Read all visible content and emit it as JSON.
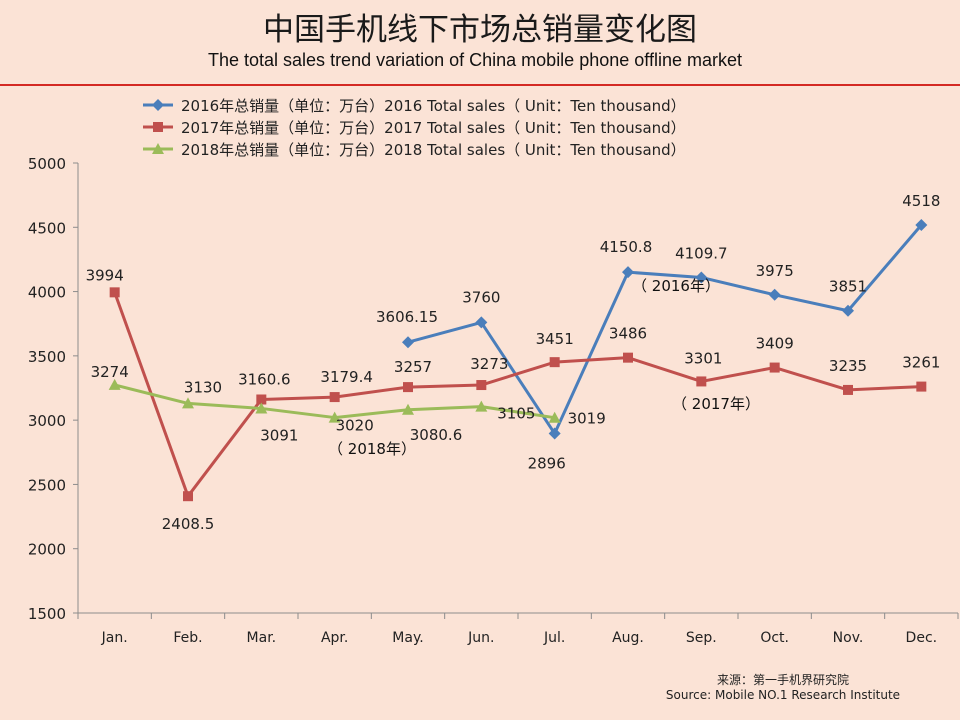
{
  "title_cn": "中国手机线下市场总销量变化图",
  "title_en": "The total sales trend variation of China mobile phone offline market",
  "source_cn": "来源：第一手机界研究院",
  "source_en": "Source: Mobile NO.1 Research Institute",
  "colors": {
    "s2016": "#4a7ebb",
    "s2017": "#c0504d",
    "s2018": "#9bbb59",
    "title_rule": "#d42a24",
    "background": "#fbe3d6"
  },
  "chart_data": {
    "type": "line",
    "categories": [
      "Jan.",
      "Feb.",
      "Mar.",
      "Apr.",
      "May.",
      "Jun.",
      "Jul.",
      "Aug.",
      "Sep.",
      "Oct.",
      "Nov.",
      "Dec."
    ],
    "ylim": [
      1500,
      5000
    ],
    "yticks": [
      1500,
      2000,
      2500,
      3000,
      3500,
      4000,
      4500,
      5000
    ],
    "grid": false,
    "legend_position": "top",
    "series": [
      {
        "name": "2016年总销量（单位：万台）2016 Total sales（ Unit：Ten thousand）",
        "marker": "diamond",
        "values": [
          null,
          null,
          null,
          null,
          3606.15,
          3760,
          2896,
          4150.8,
          4109.7,
          3975,
          3851,
          4518
        ],
        "labels": [
          "",
          "",
          "",
          "",
          "3606.15",
          "3760",
          "2896",
          "4150.8",
          "4109.7",
          "3975",
          "3851",
          "4518"
        ]
      },
      {
        "name": "2017年总销量（单位：万台）2017 Total sales（ Unit：Ten thousand）",
        "marker": "square",
        "values": [
          3994,
          2408.5,
          3160.6,
          3179.4,
          3257,
          3273,
          3451,
          3486,
          3301,
          3409,
          3235,
          3261
        ],
        "labels": [
          "3994",
          "2408.5",
          "3160.6",
          "3179.4",
          "3257",
          "3273",
          "3451",
          "3486",
          "3301",
          "3409",
          "3235",
          "3261"
        ]
      },
      {
        "name": "2018年总销量（单位：万台）2018 Total sales（ Unit：Ten thousand）",
        "marker": "triangle",
        "values": [
          3274,
          3130,
          3091,
          3020,
          3080.6,
          3105,
          3019,
          null,
          null,
          null,
          null,
          null
        ],
        "labels": [
          "3274",
          "3130",
          "3091",
          "3020",
          "3080.6",
          "3105",
          "3019",
          "",
          "",
          "",
          "",
          ""
        ]
      }
    ],
    "annotations": [
      "（ 2016年）",
      "（ 2017年）",
      "（ 2018年）"
    ]
  }
}
